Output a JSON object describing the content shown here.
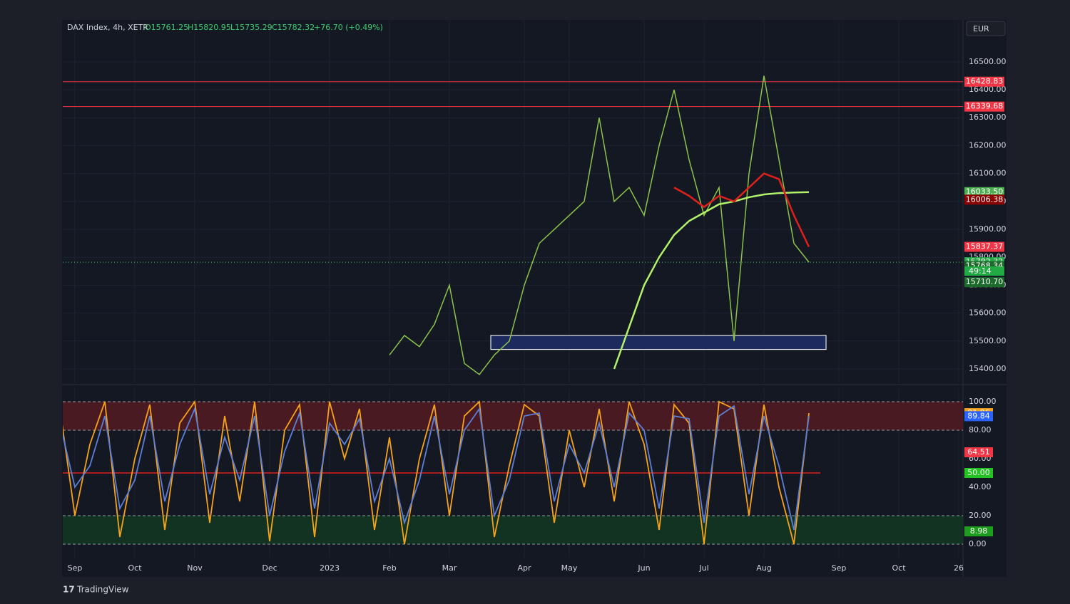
{
  "header": {
    "symbol": "DAX Index, 4h, XETR",
    "ohlc": [
      "O15761.25",
      "H15820.95",
      "L15735.29",
      "C15782.32"
    ],
    "change": "+76.70 (+0.49%)",
    "currency": "EUR",
    "brand": "TradingView"
  },
  "chart_data": {
    "type": "line",
    "categories": [
      null,
      "Sep",
      null,
      null,
      null,
      "Oct",
      null,
      null,
      null,
      "Nov",
      null,
      null,
      null,
      null,
      "Dec",
      null,
      null,
      null,
      "2023",
      null,
      null,
      null,
      "Feb",
      null,
      null,
      null,
      "Mar",
      null,
      null,
      null,
      null,
      "Apr",
      null,
      null,
      "May",
      null,
      null,
      null,
      null,
      "Jun",
      null,
      null,
      null,
      "Jul",
      null,
      null,
      null,
      "Aug",
      null,
      null,
      null,
      null,
      "Sep",
      null,
      null,
      null,
      "Oct",
      null,
      null,
      null,
      "26"
    ],
    "series": [
      {
        "color": "#8bc34a",
        "values": [
          null,
          null,
          null,
          null,
          null,
          null,
          null,
          null,
          null,
          null,
          null,
          null,
          null,
          null,
          null,
          null,
          null,
          null,
          null,
          null,
          null,
          null,
          15450,
          15520,
          15480,
          15560,
          15700,
          15420,
          15380,
          15450,
          15500,
          15700,
          15850,
          15900,
          15950,
          16000,
          16300,
          16000,
          16050,
          15950,
          16200,
          16400,
          16150,
          15950,
          16050,
          15500,
          16100,
          16450,
          16150,
          15850,
          15782.32,
          null,
          null,
          null,
          null,
          null,
          null,
          null,
          null,
          null,
          null
        ]
      },
      {
        "color": "#b2f26b",
        "values": [
          null,
          null,
          null,
          null,
          null,
          null,
          null,
          null,
          null,
          null,
          null,
          null,
          null,
          null,
          null,
          null,
          null,
          null,
          null,
          null,
          null,
          null,
          null,
          null,
          null,
          null,
          null,
          null,
          null,
          null,
          null,
          null,
          null,
          null,
          null,
          null,
          null,
          15400,
          15550,
          15700,
          15800,
          15880,
          15930,
          15960,
          15990,
          16000,
          16015,
          16025,
          16030,
          16032,
          16033.5,
          null,
          null,
          null,
          null,
          null,
          null,
          null,
          null,
          null,
          null
        ]
      },
      {
        "color": "#e0201b",
        "values": [
          null,
          null,
          null,
          null,
          null,
          null,
          null,
          null,
          null,
          null,
          null,
          null,
          null,
          null,
          null,
          null,
          null,
          null,
          null,
          null,
          null,
          null,
          null,
          null,
          null,
          null,
          null,
          null,
          null,
          null,
          null,
          null,
          null,
          null,
          null,
          null,
          null,
          null,
          null,
          null,
          null,
          16050,
          16020,
          15980,
          16020,
          16000,
          16050,
          16100,
          16080,
          15950,
          15837.37,
          null,
          null,
          null,
          null,
          null,
          null,
          null,
          null,
          null,
          null
        ]
      }
    ],
    "ylim": [
      15349,
      16645
    ],
    "yticks": [
      {
        "value": 15400,
        "label": "15400.00"
      },
      {
        "value": 15500,
        "label": "15500.00"
      },
      {
        "value": 15600,
        "label": "15600.00"
      },
      {
        "value": 15700,
        "label": "15700.00"
      },
      {
        "value": 15800,
        "label": "15800.00"
      },
      {
        "value": 15900,
        "label": "15900.00"
      },
      {
        "value": 16000,
        "label": "16000.00"
      },
      {
        "value": 16100,
        "label": "16100.00"
      },
      {
        "value": 16200,
        "label": "16200.00"
      },
      {
        "value": 16300,
        "label": "16300.00"
      },
      {
        "value": 16400,
        "label": "16400.00"
      },
      {
        "value": 16500,
        "label": "16500.00"
      }
    ],
    "grid": true,
    "hlines": [
      {
        "value": 16428.83,
        "color": "#f23645"
      },
      {
        "value": 16339.68,
        "color": "#f23645"
      }
    ],
    "current_price": 15782.32,
    "countdown": "49:14",
    "zone": {
      "low": 15470,
      "high": 15520,
      "color": "#1c2a5e"
    },
    "price_labels": [
      {
        "value": 16033.5,
        "label": "16033.50",
        "color": "#4caf50"
      },
      {
        "value": 16006.38,
        "color": "#8b0000"
      },
      {
        "value": 15837.37,
        "color": "#f23645"
      },
      {
        "value": 15782.32,
        "color": "#22ab44"
      },
      {
        "value": 15768.34,
        "color": "#1b6b2a"
      },
      {
        "value": 15710.7,
        "label": "15710.70",
        "color": "#1b6b2a"
      }
    ],
    "oscillator": {
      "ylim": [
        -10.5,
        108
      ],
      "yticks": [
        {
          "value": 0,
          "label": "0.00"
        },
        {
          "value": 20,
          "label": "20.00"
        },
        {
          "value": 40,
          "label": "40.00"
        },
        {
          "value": 60,
          "label": "60.00"
        },
        {
          "value": 80,
          "label": "80.00"
        },
        {
          "value": 100,
          "label": "100.00"
        }
      ],
      "levels": [
        0,
        20,
        80,
        100
      ],
      "midline": 50,
      "bands": [
        {
          "from": 80,
          "to": 100,
          "color": "#4a1a22"
        },
        {
          "from": 0,
          "to": 20,
          "color": "#123322"
        }
      ],
      "series": [
        {
          "color": "#f7a21b",
          "values": [
            95,
            20,
            70,
            100,
            5,
            60,
            98,
            10,
            85,
            100,
            15,
            90,
            30,
            100,
            2,
            80,
            98,
            5,
            100,
            60,
            95,
            10,
            75,
            0,
            60,
            98,
            20,
            90,
            100,
            5,
            55,
            98,
            90,
            15,
            80,
            40,
            95,
            30,
            100,
            70,
            10,
            98,
            85,
            0,
            100,
            95,
            20,
            98,
            40,
            0,
            91.96,
            null,
            null,
            null,
            null,
            null,
            null,
            null,
            null,
            null,
            null
          ]
        },
        {
          "color": "#5b7fd8",
          "values": [
            85,
            40,
            55,
            90,
            25,
            45,
            90,
            30,
            70,
            95,
            35,
            75,
            45,
            90,
            20,
            65,
            92,
            25,
            85,
            70,
            88,
            30,
            60,
            15,
            45,
            90,
            35,
            80,
            95,
            20,
            45,
            90,
            92,
            30,
            70,
            50,
            85,
            40,
            92,
            80,
            25,
            90,
            88,
            15,
            90,
            97,
            35,
            90,
            55,
            10,
            89.84,
            null,
            null,
            null,
            null,
            null,
            null,
            null,
            null,
            null,
            null
          ]
        }
      ],
      "labels": [
        {
          "value": 91.96,
          "color": "#f7a21b"
        },
        {
          "value": 89.84,
          "color": "#2962ff"
        },
        {
          "value": 64.51,
          "color": "#f23645"
        },
        {
          "value": 50,
          "label": "50.00",
          "color": "#22c322"
        },
        {
          "value": 8.98,
          "color": "#1e9e1e"
        }
      ]
    }
  }
}
